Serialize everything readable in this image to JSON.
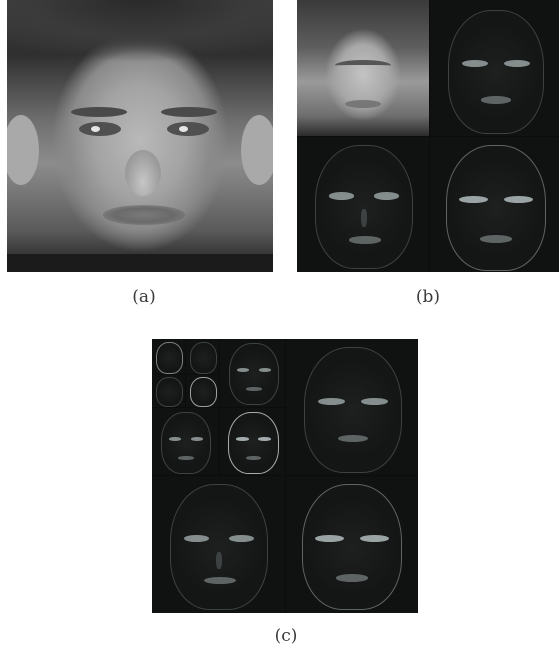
{
  "captions": {
    "a": "(a)",
    "b": "(b)",
    "c": "(c)"
  }
}
